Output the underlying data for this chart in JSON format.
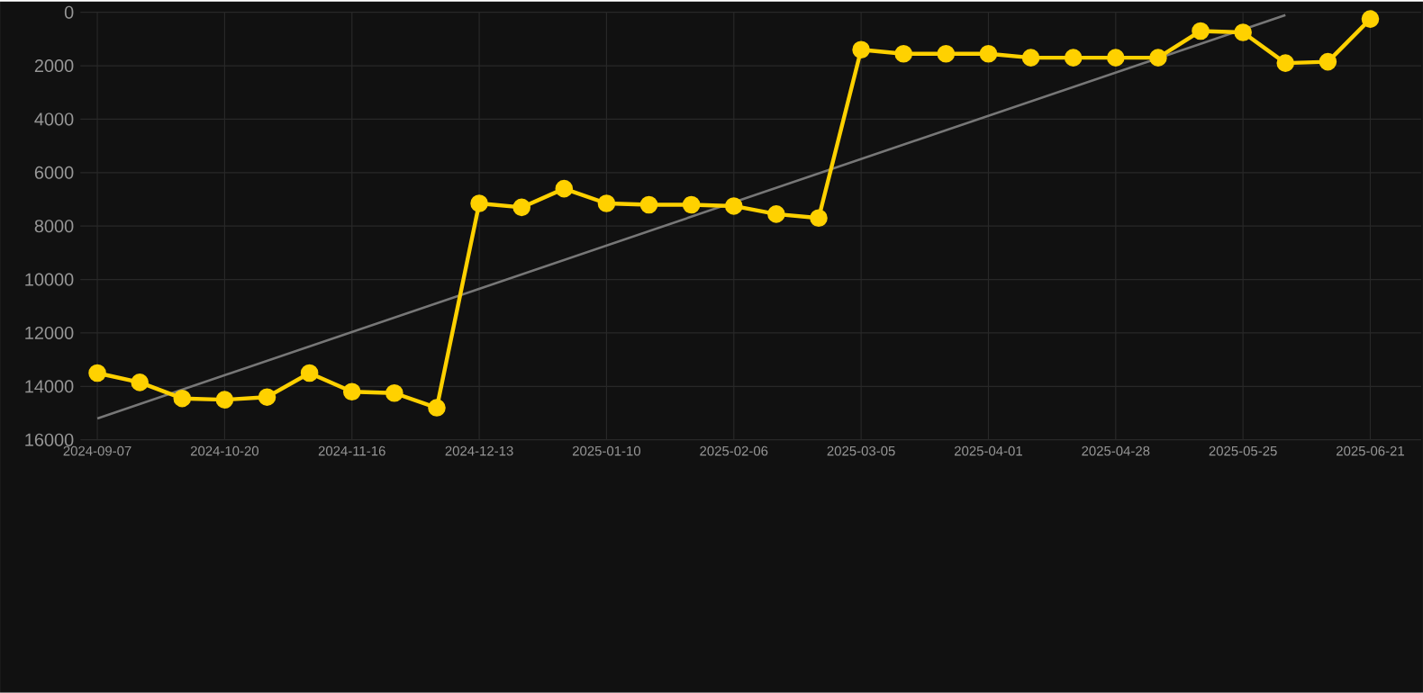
{
  "chart_data": {
    "type": "line",
    "categories": [
      "2024-09-07",
      null,
      null,
      "2024-10-20",
      null,
      null,
      "2024-11-16",
      null,
      null,
      "2024-12-13",
      null,
      null,
      "2025-01-10",
      null,
      null,
      "2025-02-06",
      null,
      null,
      "2025-03-05",
      null,
      null,
      "2025-04-01",
      null,
      null,
      "2025-04-28",
      null,
      null,
      "2025-05-25",
      null,
      null,
      "2025-06-21"
    ],
    "series": [
      {
        "color": "#777777",
        "marker": "none",
        "values": [
          15200,
          null,
          null,
          null,
          null,
          null,
          null,
          null,
          null,
          null,
          null,
          null,
          null,
          null,
          null,
          null,
          null,
          null,
          null,
          null,
          null,
          null,
          null,
          null,
          null,
          null,
          null,
          null,
          100,
          null,
          null
        ]
      },
      {
        "color": "#ffd100",
        "values": [
          13500,
          13850,
          14450,
          14500,
          14400,
          13500,
          14200,
          14250,
          14800,
          7150,
          7300,
          6600,
          7150,
          7200,
          7200,
          7250,
          7550,
          7700,
          1400,
          1550,
          1550,
          1550,
          1700,
          1700,
          1700,
          1700,
          700,
          750,
          1900,
          1850,
          250
        ]
      }
    ],
    "ylim": [
      16000,
      0
    ],
    "yticks": [
      0,
      2000,
      4000,
      6000,
      8000,
      10000,
      12000,
      14000,
      16000
    ],
    "grid": true,
    "marker": "circle",
    "line_style": "solid"
  }
}
